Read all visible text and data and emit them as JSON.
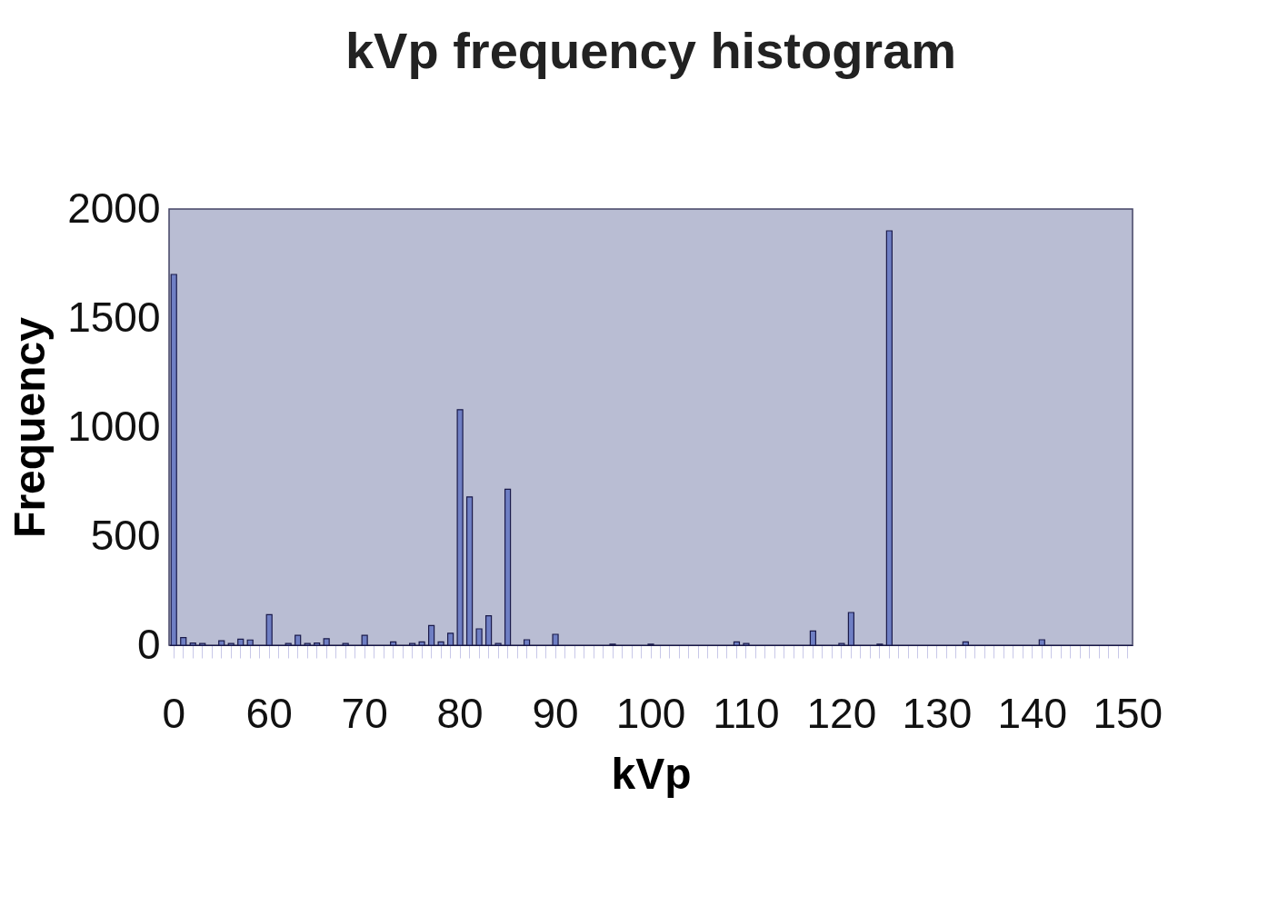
{
  "chart_data": {
    "type": "bar",
    "title": "kVp frequency histogram",
    "xlabel": "kVp",
    "ylabel": "Frequency",
    "categories": [
      "0",
      null,
      null,
      null,
      null,
      null,
      null,
      null,
      null,
      null,
      "60",
      null,
      null,
      null,
      null,
      null,
      null,
      null,
      null,
      null,
      "70",
      null,
      null,
      null,
      null,
      null,
      null,
      null,
      null,
      null,
      "80",
      null,
      null,
      null,
      null,
      null,
      null,
      null,
      null,
      null,
      "90",
      null,
      null,
      null,
      null,
      null,
      null,
      null,
      null,
      null,
      "100",
      null,
      null,
      null,
      null,
      null,
      null,
      null,
      null,
      null,
      "110",
      null,
      null,
      null,
      null,
      null,
      null,
      null,
      null,
      null,
      "120",
      null,
      null,
      null,
      null,
      null,
      null,
      null,
      null,
      null,
      "130",
      null,
      null,
      null,
      null,
      null,
      null,
      null,
      null,
      null,
      "140",
      null,
      null,
      null,
      null,
      null,
      null,
      null,
      null,
      null,
      "150"
    ],
    "values": [
      1700,
      35,
      10,
      8,
      null,
      20,
      8,
      28,
      24,
      null,
      140,
      null,
      8,
      45,
      8,
      10,
      30,
      null,
      8,
      null,
      45,
      null,
      null,
      15,
      null,
      8,
      15,
      90,
      15,
      55,
      1080,
      680,
      75,
      135,
      8,
      715,
      null,
      25,
      null,
      null,
      50,
      null,
      null,
      null,
      null,
      null,
      5,
      null,
      null,
      null,
      5,
      null,
      null,
      null,
      null,
      null,
      null,
      null,
      null,
      15,
      8,
      null,
      null,
      null,
      null,
      null,
      null,
      65,
      null,
      null,
      8,
      150,
      null,
      null,
      5,
      1900,
      null,
      null,
      null,
      null,
      null,
      null,
      null,
      15,
      null,
      null,
      null,
      null,
      null,
      null,
      null,
      25,
      null,
      null,
      null,
      null,
      null,
      null,
      null,
      null,
      null
    ],
    "color": "#6f7fc4",
    "ylim": [
      0,
      2000
    ],
    "yticks": [
      0,
      500,
      1000,
      1500,
      2000
    ],
    "grid": false
  }
}
